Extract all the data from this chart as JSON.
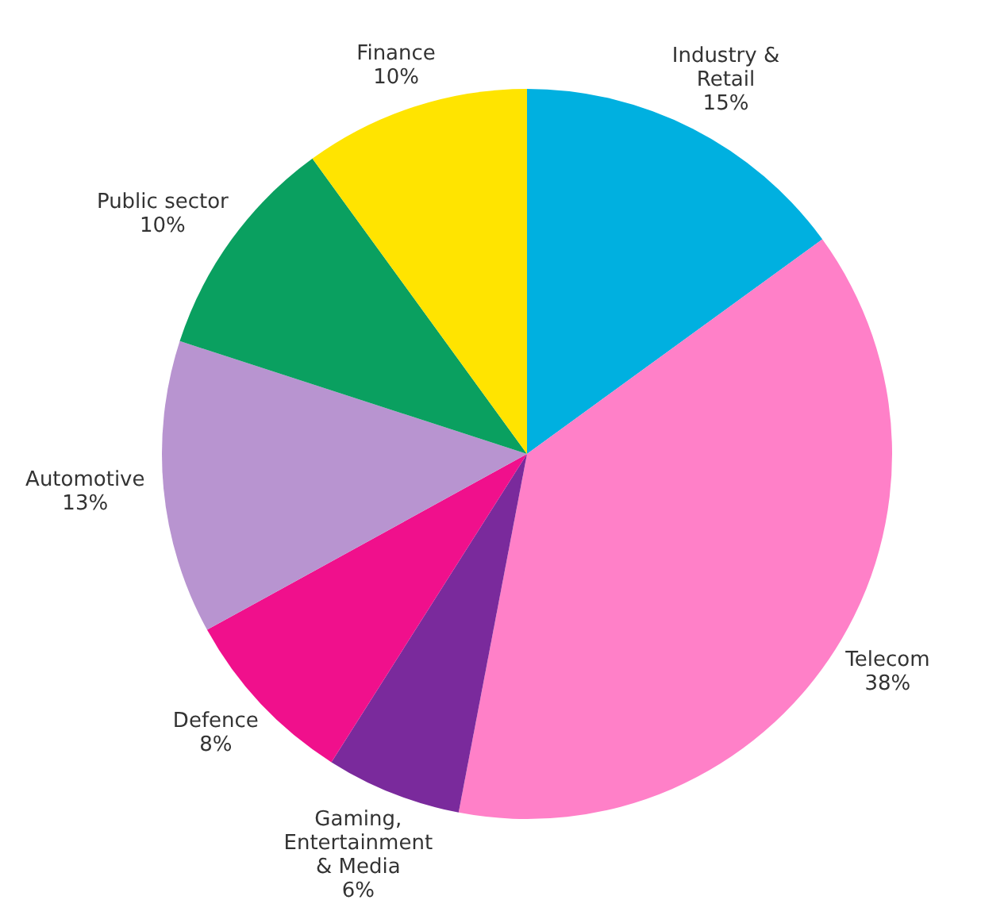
{
  "chart_data": {
    "type": "pie",
    "categories": [
      "Industry & Retail",
      "Telecom",
      "Gaming, Entertainment & Media",
      "Defence",
      "Automotive",
      "Public sector",
      "Finance"
    ],
    "values": [
      15,
      38,
      6,
      8,
      13,
      10,
      10
    ],
    "colors": [
      "#00b0e0",
      "#ff80c8",
      "#7a2a9c",
      "#f0108c",
      "#b894d0",
      "#0aa060",
      "#ffe400"
    ],
    "value_labels": [
      "15%",
      "38%",
      "6%",
      "8%",
      "13%",
      "10%",
      "10%"
    ]
  }
}
